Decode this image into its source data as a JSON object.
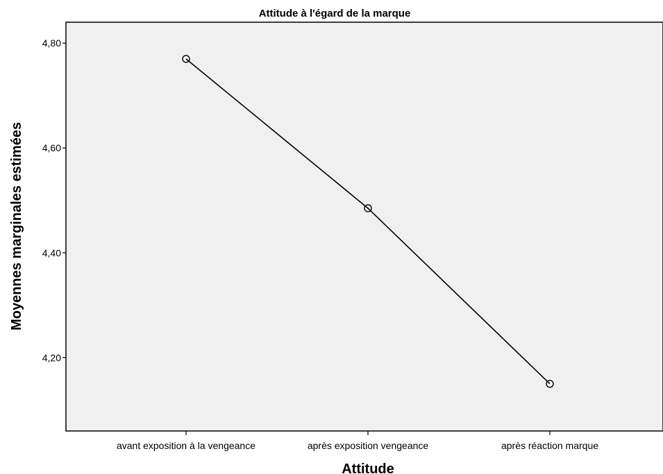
{
  "chart_data": {
    "type": "line",
    "title": "Attitude à l'égard de la marque",
    "xlabel": "Attitude",
    "ylabel": "Moyennes marginales estimées",
    "categories": [
      "avant exposition à la vengeance",
      "après exposition vengeance",
      "après réaction marque"
    ],
    "series": [
      {
        "values": [
          4.77,
          4.485,
          4.15
        ]
      }
    ],
    "ylim": [
      4.06,
      4.84
    ],
    "yticks": [
      4.2,
      4.4,
      4.6,
      4.8
    ],
    "ytick_labels": [
      "4,20",
      "4,40",
      "4,60",
      "4,80"
    ],
    "grid": false,
    "legend": "none",
    "colors": {
      "plot_background": "#f0f0f0",
      "line": "#000000",
      "marker_fill": "none"
    },
    "marker": "open-circle"
  }
}
